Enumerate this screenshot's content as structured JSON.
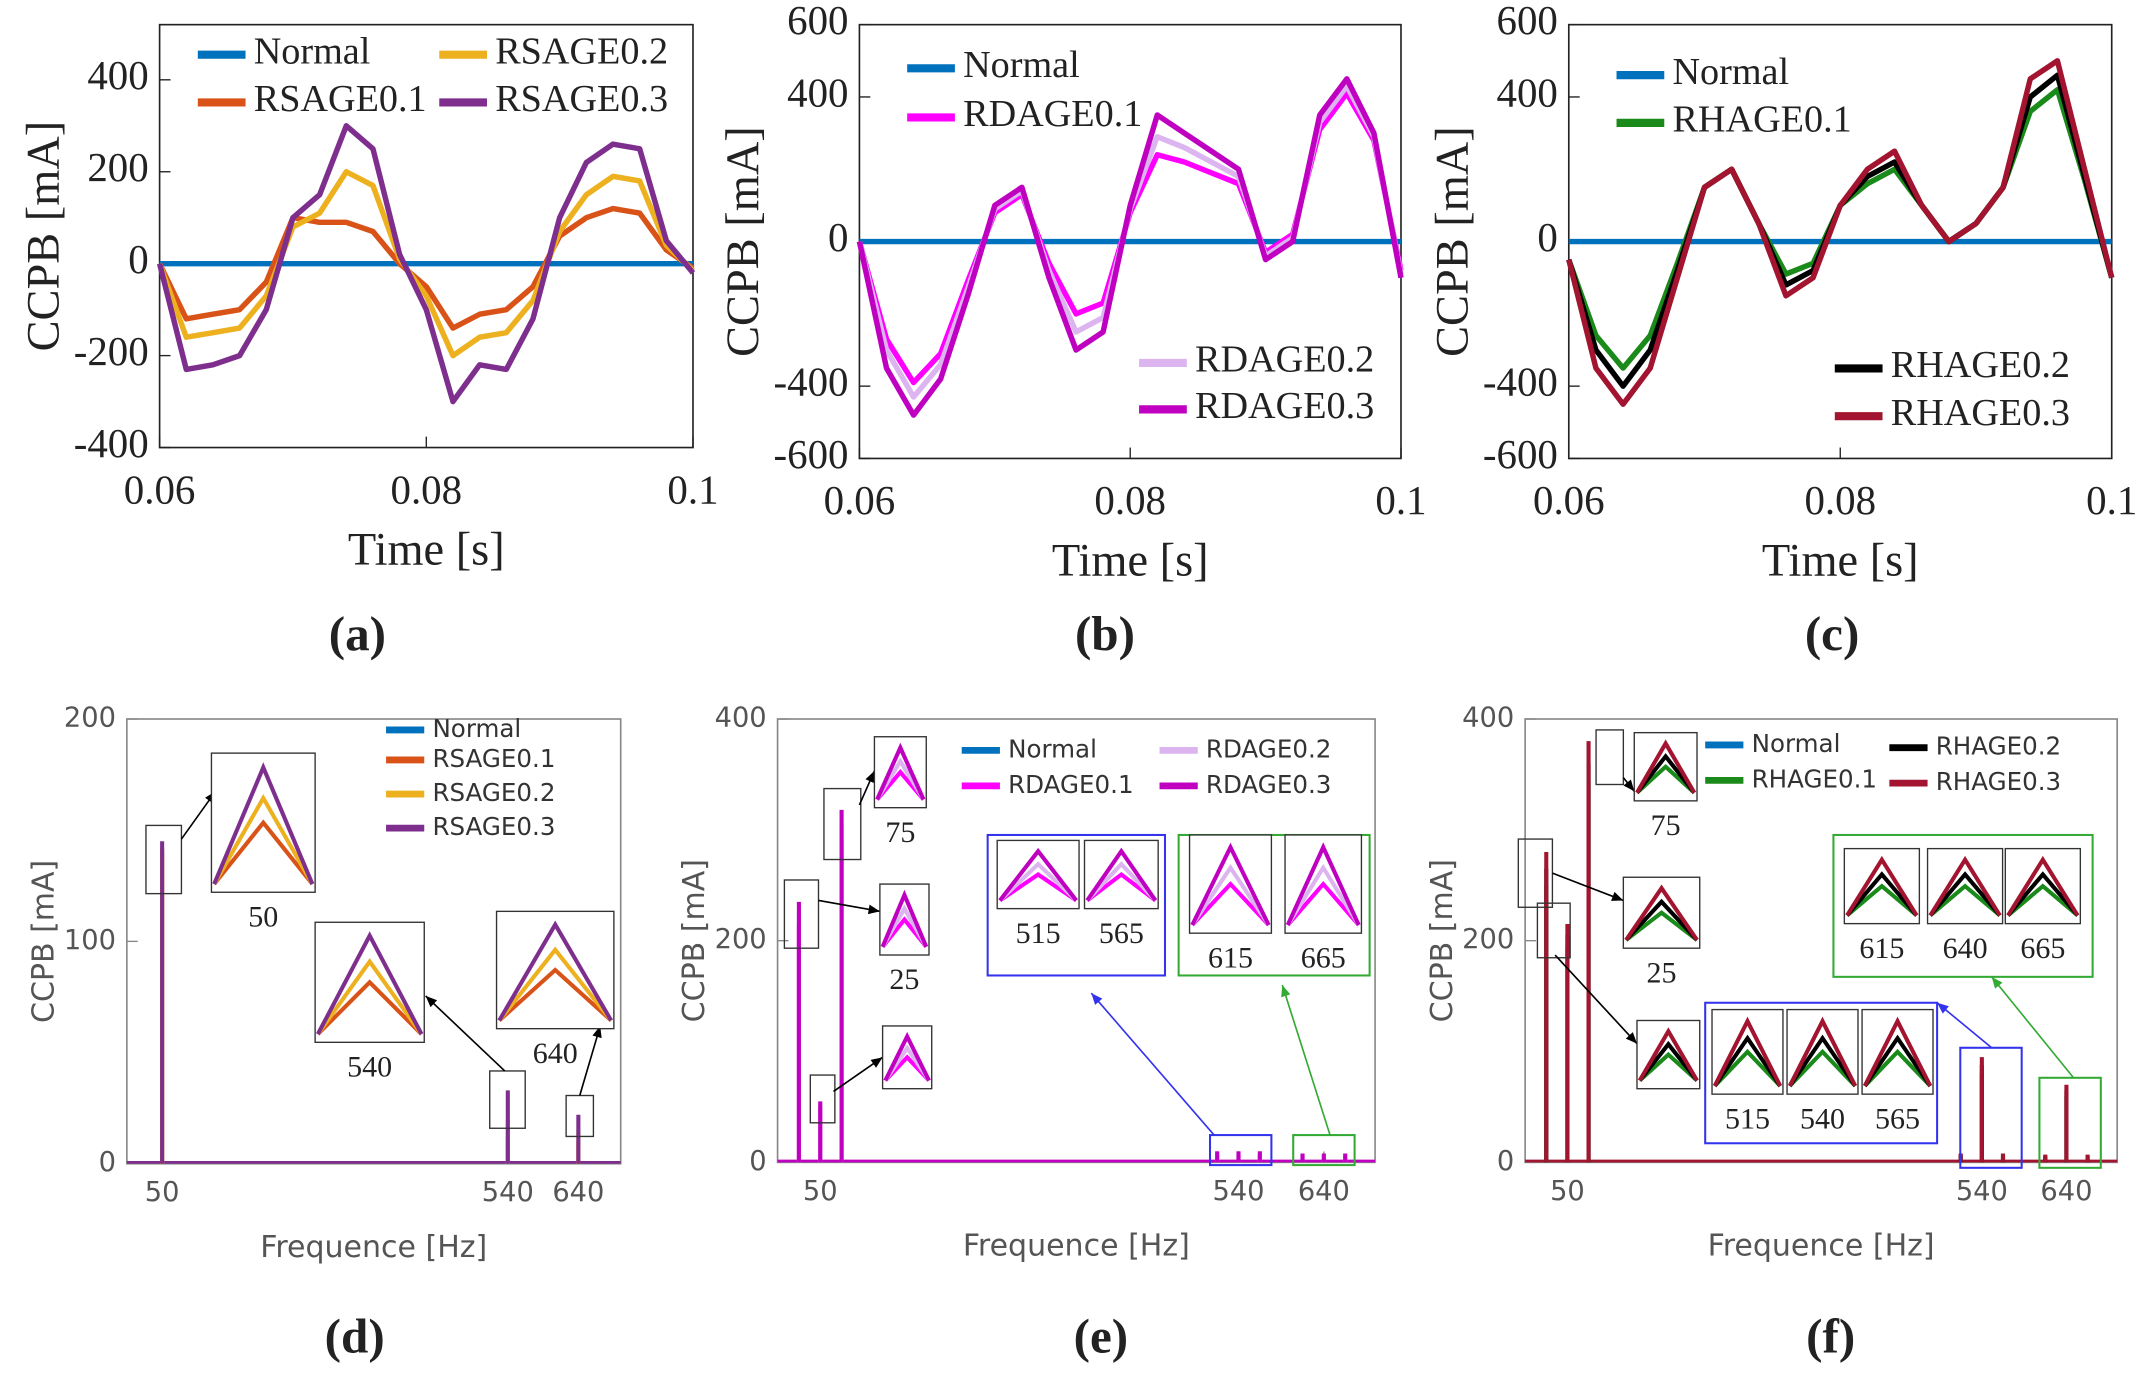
{
  "chart_data": [
    {
      "type": "line",
      "caption": "(a)",
      "xlabel": "Time [s]",
      "ylabel": "CCPB [mA]",
      "x": [
        0.06,
        0.062,
        0.064,
        0.066,
        0.068,
        0.07,
        0.072,
        0.074,
        0.076,
        0.078,
        0.08,
        0.082,
        0.084,
        0.086,
        0.088,
        0.09,
        0.092,
        0.094,
        0.096,
        0.098,
        0.1
      ],
      "xlim": [
        0.06,
        0.1
      ],
      "xticks": [
        0.06,
        0.08,
        0.1
      ],
      "ylim": [
        -400,
        520
      ],
      "yticks": [
        -400,
        -200,
        0,
        200,
        400
      ],
      "series": [
        {
          "name": "Normal",
          "color": "#0072bd",
          "values": [
            0,
            0,
            0,
            0,
            0,
            0,
            0,
            0,
            0,
            0,
            0,
            0,
            0,
            0,
            0,
            0,
            0,
            0,
            0,
            0,
            0
          ]
        },
        {
          "name": "RSAGE0.1",
          "color": "#d95319",
          "values": [
            0,
            -120,
            -110,
            -100,
            -40,
            100,
            90,
            90,
            70,
            0,
            -50,
            -140,
            -110,
            -100,
            -50,
            60,
            100,
            120,
            110,
            30,
            -10
          ]
        },
        {
          "name": "RSAGE0.2",
          "color": "#edb120",
          "values": [
            0,
            -160,
            -150,
            -140,
            -70,
            80,
            110,
            200,
            170,
            10,
            -70,
            -200,
            -160,
            -150,
            -80,
            70,
            150,
            190,
            180,
            40,
            -15
          ]
        },
        {
          "name": "RSAGE0.3",
          "color": "#7e2f8e",
          "values": [
            0,
            -230,
            -220,
            -200,
            -100,
            100,
            150,
            300,
            250,
            20,
            -100,
            -300,
            -220,
            -230,
            -120,
            100,
            220,
            260,
            250,
            50,
            -20
          ]
        }
      ]
    },
    {
      "type": "line",
      "caption": "(b)",
      "xlabel": "Time [s]",
      "ylabel": "CCPB [mA]",
      "x": [
        0.06,
        0.062,
        0.064,
        0.066,
        0.068,
        0.07,
        0.072,
        0.074,
        0.076,
        0.078,
        0.08,
        0.082,
        0.084,
        0.086,
        0.088,
        0.09,
        0.092,
        0.094,
        0.096,
        0.098,
        0.1
      ],
      "xlim": [
        0.06,
        0.1
      ],
      "xticks": [
        0.06,
        0.08,
        0.1
      ],
      "ylim": [
        -600,
        600
      ],
      "yticks": [
        -600,
        -400,
        0,
        400,
        600
      ],
      "series": [
        {
          "name": "Normal",
          "color": "#0072bd",
          "values": [
            0,
            0,
            0,
            0,
            0,
            0,
            0,
            0,
            0,
            0,
            0,
            0,
            0,
            0,
            0,
            0,
            0,
            0,
            0,
            0,
            0
          ]
        },
        {
          "name": "RDAGE0.1",
          "color": "#ff00ff",
          "values": [
            0,
            -270,
            -390,
            -310,
            -110,
            80,
            130,
            -60,
            -200,
            -170,
            80,
            240,
            220,
            190,
            160,
            -30,
            20,
            310,
            410,
            280,
            -80
          ]
        },
        {
          "name": "RDAGE0.2",
          "color": "#dcb4f0",
          "values": [
            0,
            -300,
            -430,
            -340,
            -130,
            90,
            140,
            -80,
            -250,
            -210,
            90,
            290,
            260,
            220,
            180,
            -40,
            10,
            330,
            430,
            290,
            -90
          ]
        },
        {
          "name": "RDAGE0.3",
          "color": "#c000c0",
          "values": [
            0,
            -350,
            -480,
            -380,
            -150,
            100,
            150,
            -100,
            -300,
            -250,
            100,
            350,
            300,
            250,
            200,
            -50,
            0,
            350,
            450,
            300,
            -100
          ]
        }
      ]
    },
    {
      "type": "line",
      "caption": "(c)",
      "xlabel": "Time [s]",
      "ylabel": "CCPB [mA]",
      "x": [
        0.06,
        0.062,
        0.064,
        0.066,
        0.068,
        0.07,
        0.072,
        0.074,
        0.076,
        0.078,
        0.08,
        0.082,
        0.084,
        0.086,
        0.088,
        0.09,
        0.092,
        0.094,
        0.096,
        0.098,
        0.1
      ],
      "xlim": [
        0.06,
        0.1
      ],
      "xticks": [
        0.06,
        0.08,
        0.1
      ],
      "ylim": [
        -600,
        600
      ],
      "yticks": [
        -600,
        -400,
        0,
        400,
        600
      ],
      "series": [
        {
          "name": "Normal",
          "color": "#0072bd",
          "values": [
            0,
            0,
            0,
            0,
            0,
            0,
            0,
            0,
            0,
            0,
            0,
            0,
            0,
            0,
            0,
            0,
            0,
            0,
            0,
            0,
            0
          ]
        },
        {
          "name": "RHAGE0.1",
          "color": "#1a8a1a",
          "values": [
            -50,
            -260,
            -350,
            -260,
            -60,
            150,
            200,
            50,
            -90,
            -60,
            100,
            160,
            200,
            100,
            0,
            50,
            150,
            360,
            420,
            170,
            -100
          ]
        },
        {
          "name": "RHAGE0.2",
          "color": "#000000",
          "values": [
            -50,
            -300,
            -400,
            -300,
            -80,
            150,
            200,
            50,
            -120,
            -80,
            100,
            180,
            220,
            100,
            0,
            50,
            150,
            400,
            460,
            180,
            -100
          ]
        },
        {
          "name": "RHAGE0.3",
          "color": "#a2142f",
          "values": [
            -50,
            -350,
            -450,
            -350,
            -100,
            150,
            200,
            50,
            -150,
            -100,
            100,
            200,
            250,
            100,
            0,
            50,
            150,
            450,
            500,
            200,
            -100
          ]
        }
      ]
    },
    {
      "type": "spectrum",
      "caption": "(d)",
      "xlabel": "Frequence [Hz]",
      "ylabel": "CCPB [mA]",
      "x": [
        50,
        540,
        640
      ],
      "xlim": [
        0,
        700
      ],
      "xticks": [
        50,
        540,
        640
      ],
      "ylim": [
        0,
        200
      ],
      "yticks": [
        0,
        100,
        200
      ],
      "insets": [
        "50",
        "540",
        "640"
      ],
      "series": [
        {
          "name": "Normal",
          "color": "#0072bd",
          "values": [
            0,
            0,
            0
          ]
        },
        {
          "name": "RSAGE0.1",
          "color": "#d95319",
          "values": [
            140,
            12,
            10
          ]
        },
        {
          "name": "RSAGE0.2",
          "color": "#edb120",
          "values": [
            142,
            20,
            15
          ]
        },
        {
          "name": "RSAGE0.3",
          "color": "#7e2f8e",
          "values": [
            145,
            33,
            22
          ]
        }
      ]
    },
    {
      "type": "spectrum",
      "caption": "(e)",
      "xlabel": "Frequence [Hz]",
      "ylabel": "CCPB [mA]",
      "x": [
        25,
        50,
        75,
        515,
        540,
        565,
        615,
        640,
        665
      ],
      "xlim": [
        0,
        700
      ],
      "xticks": [
        50,
        540,
        640
      ],
      "ylim": [
        0,
        400
      ],
      "yticks": [
        0,
        200,
        400
      ],
      "insets": [
        "75",
        "25",
        "515",
        "565",
        "615",
        "665"
      ],
      "series": [
        {
          "name": "Normal",
          "color": "#0072bd",
          "values": [
            0,
            0,
            0,
            0,
            0,
            0,
            0,
            0,
            0
          ]
        },
        {
          "name": "RDAGE0.1",
          "color": "#ff00ff",
          "values": [
            215,
            50,
            290,
            7,
            7,
            7,
            6,
            6,
            6
          ]
        },
        {
          "name": "RDAGE0.2",
          "color": "#dcb4f0",
          "values": [
            225,
            52,
            305,
            8,
            8,
            8,
            7,
            7,
            7
          ]
        },
        {
          "name": "RDAGE0.3",
          "color": "#c000c0",
          "values": [
            235,
            55,
            318,
            10,
            10,
            10,
            8,
            8,
            8
          ]
        }
      ]
    },
    {
      "type": "spectrum",
      "caption": "(f)",
      "xlabel": "Frequence [Hz]",
      "ylabel": "CCPB [mA]",
      "x": [
        25,
        50,
        75,
        515,
        540,
        565,
        615,
        640,
        665
      ],
      "xlim": [
        0,
        700
      ],
      "xticks": [
        50,
        540,
        640
      ],
      "ylim": [
        0,
        400
      ],
      "yticks": [
        0,
        200,
        400
      ],
      "insets": [
        "75",
        "25",
        "615",
        "640",
        "665",
        "515",
        "540",
        "565"
      ],
      "series": [
        {
          "name": "Normal",
          "color": "#0072bd",
          "values": [
            0,
            0,
            0,
            0,
            0,
            0,
            0,
            0,
            0
          ]
        },
        {
          "name": "RHAGE0.1",
          "color": "#1a8a1a",
          "values": [
            250,
            195,
            345,
            6,
            80,
            6,
            5,
            60,
            5
          ]
        },
        {
          "name": "RHAGE0.2",
          "color": "#000000",
          "values": [
            265,
            205,
            360,
            7,
            88,
            7,
            6,
            65,
            6
          ]
        },
        {
          "name": "RHAGE0.3",
          "color": "#a2142f",
          "values": [
            280,
            215,
            380,
            8,
            95,
            8,
            7,
            70,
            7
          ]
        }
      ]
    }
  ]
}
